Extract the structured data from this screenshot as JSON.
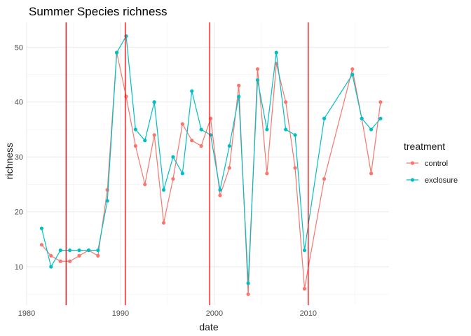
{
  "chart_data": {
    "type": "line",
    "title": "Summer Species richness",
    "xlabel": "date",
    "ylabel": "richness",
    "xlim": [
      1980,
      2018.6
    ],
    "ylim": [
      3,
      54.5
    ],
    "x_ticks": [
      1980,
      1990,
      2000,
      2010
    ],
    "y_ticks": [
      10,
      20,
      30,
      40,
      50
    ],
    "grid": true,
    "legend": {
      "title": "treatment",
      "position": "right"
    },
    "vlines": {
      "x": [
        1984.2,
        1990.5,
        1999.5,
        2010.0
      ],
      "color": "#ff0000"
    },
    "series": [
      {
        "name": "control",
        "color": "#F8766D",
        "x": [
          1981.6,
          1982.6,
          1983.6,
          1984.6,
          1985.6,
          1986.6,
          1987.6,
          1988.6,
          1989.6,
          1990.6,
          1991.6,
          1992.6,
          1993.6,
          1994.6,
          1995.6,
          1996.6,
          1997.6,
          1998.6,
          1999.6,
          2000.6,
          2001.6,
          2002.6,
          2003.6,
          2004.6,
          2005.6,
          2006.6,
          2007.6,
          2008.6,
          2009.6,
          2011.7,
          2014.7,
          2015.7,
          2016.7,
          2017.7
        ],
        "y": [
          14,
          12,
          11,
          11,
          12,
          13,
          12,
          24,
          49,
          41,
          32,
          25,
          34,
          18,
          26,
          36,
          33,
          32,
          37,
          23,
          28,
          43,
          5,
          46,
          27,
          47,
          40,
          28,
          6,
          26,
          46,
          37,
          27,
          40
        ]
      },
      {
        "name": "exclosure",
        "color": "#00BFC4",
        "x": [
          1981.6,
          1982.6,
          1983.6,
          1984.6,
          1985.6,
          1986.6,
          1987.6,
          1988.6,
          1989.6,
          1990.6,
          1991.6,
          1992.6,
          1993.6,
          1994.6,
          1995.6,
          1996.6,
          1997.6,
          1998.6,
          1999.6,
          2000.6,
          2001.6,
          2002.6,
          2003.6,
          2004.6,
          2005.6,
          2006.6,
          2007.6,
          2008.6,
          2009.6,
          2011.7,
          2014.7,
          2015.7,
          2016.7,
          2017.7
        ],
        "y": [
          17,
          10,
          13,
          13,
          13,
          13,
          13,
          22,
          49,
          52,
          35,
          33,
          40,
          24,
          30,
          27,
          42,
          35,
          34,
          24,
          32,
          41,
          7,
          44,
          35,
          49,
          35,
          34,
          13,
          37,
          45,
          37,
          35,
          37
        ]
      }
    ]
  }
}
